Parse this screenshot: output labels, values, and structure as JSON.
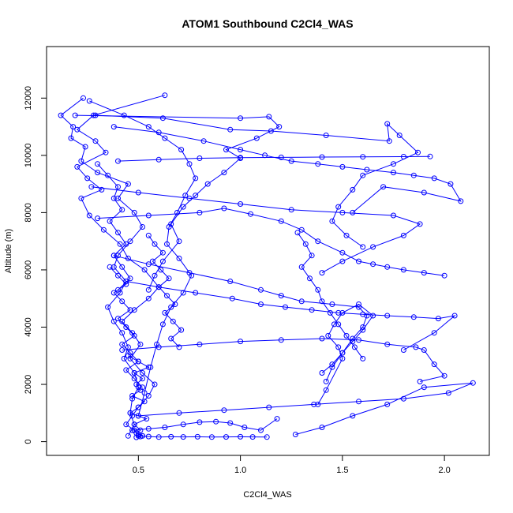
{
  "chart_data": {
    "type": "line",
    "title": "ATOM1 Southbound C2Cl4_WAS",
    "xlabel": "C2Cl4_WAS",
    "ylabel": "Altitude (m)",
    "xlim": [
      0.05,
      2.22
    ],
    "ylim": [
      -480,
      13800
    ],
    "x_ticks": [
      0.5,
      1.0,
      1.5,
      2.0
    ],
    "x_tick_labels": [
      "0.5",
      "1.0",
      "1.5",
      "2.0"
    ],
    "y_ticks": [
      0,
      2000,
      4000,
      6000,
      8000,
      10000,
      12000
    ],
    "y_tick_labels": [
      "0",
      "2000",
      "4000",
      "6000",
      "8000",
      "10000",
      "12000"
    ],
    "grid": false,
    "legend": "none",
    "marker": "open-circle",
    "series_color": "#0000ff",
    "series": [
      {
        "x": [
          0.63,
          0.28,
          0.2,
          0.29,
          0.34,
          0.2,
          0.25,
          0.32,
          0.22,
          0.26,
          0.33,
          0.41,
          0.45,
          0.53,
          0.6,
          0.55,
          0.48,
          0.42,
          0.47,
          0.51,
          0.46,
          0.52,
          0.58,
          0.55,
          0.5,
          0.47,
          0.44,
          0.48,
          0.5,
          0.52,
          0.49,
          0.51
        ],
        "y": [
          12100,
          11400,
          10900,
          10500,
          10100,
          9600,
          9200,
          8800,
          8500,
          7900,
          7400,
          6900,
          6400,
          6000,
          5400,
          5000,
          4600,
          4200,
          3800,
          3400,
          2900,
          2400,
          2000,
          1600,
          1200,
          900,
          600,
          400,
          250,
          200,
          150,
          180
        ]
      },
      {
        "x": [
          0.23,
          0.12,
          0.18,
          0.17,
          0.24,
          0.22,
          0.3,
          0.45,
          0.4,
          0.48,
          0.52,
          0.46,
          0.4,
          0.38,
          0.44,
          0.41,
          0.35,
          0.38,
          0.42,
          0.45,
          0.43,
          0.48,
          0.5,
          0.47,
          0.46,
          0.48,
          0.45
        ],
        "y": [
          12000,
          11400,
          11000,
          10600,
          10300,
          9800,
          9400,
          9000,
          8500,
          8000,
          7500,
          7000,
          6500,
          6100,
          5600,
          5200,
          4700,
          4200,
          3800,
          3300,
          2900,
          2400,
          1900,
          1500,
          1000,
          600,
          200
        ]
      },
      {
        "x": [
          0.26,
          0.43,
          0.55,
          0.63,
          0.71,
          0.75,
          0.78,
          0.73,
          0.69,
          0.65,
          0.64,
          0.7,
          0.76,
          0.72,
          0.66,
          0.62,
          0.59,
          0.56,
          0.53,
          0.5
        ],
        "y": [
          11900,
          11400,
          11000,
          10600,
          10200,
          9700,
          9200,
          8600,
          8000,
          7500,
          6900,
          6400,
          5800,
          5200,
          4700,
          4100,
          3400,
          2600,
          1700,
          900
        ]
      },
      {
        "x": [
          0.19,
          1.0,
          1.14,
          1.19,
          1.08,
          0.93,
          1.0,
          0.92,
          0.84,
          0.78,
          0.72,
          0.66,
          0.7,
          0.62,
          0.58,
          0.55
        ],
        "y": [
          11400,
          11300,
          11350,
          11000,
          10600,
          10200,
          9900,
          9400,
          9000,
          8600,
          8200,
          7600,
          7000,
          6300,
          5800,
          5300
        ]
      },
      {
        "x": [
          0.29,
          0.62,
          0.95,
          1.15,
          1.42,
          1.73,
          1.72,
          1.78,
          1.87,
          1.75,
          1.6,
          1.55,
          1.48,
          1.45,
          1.52,
          1.6
        ],
        "y": [
          11400,
          11300,
          10900,
          10850,
          10700,
          10500,
          11100,
          10700,
          10100,
          9700,
          9300,
          8800,
          8200,
          7700,
          7200,
          6800
        ]
      },
      {
        "x": [
          0.38,
          0.6,
          0.82,
          1.0,
          1.12,
          1.25,
          1.38,
          1.5,
          1.62,
          1.75,
          1.85,
          1.95,
          2.03,
          2.08,
          1.9,
          1.7,
          1.55
        ],
        "y": [
          11000,
          10800,
          10500,
          10200,
          10000,
          9800,
          9700,
          9600,
          9500,
          9400,
          9300,
          9200,
          9000,
          8400,
          8700,
          8900,
          8000
        ]
      },
      {
        "x": [
          0.4,
          0.6,
          0.8,
          1.0,
          1.2,
          1.4,
          1.6,
          1.8,
          1.93
        ],
        "y": [
          9800,
          9850,
          9900,
          9920,
          9930,
          9940,
          9950,
          9955,
          9960
        ]
      },
      {
        "x": [
          0.27,
          0.5,
          0.75,
          1.0,
          1.25,
          1.5,
          1.75,
          1.88,
          1.8,
          1.65,
          1.5,
          1.4
        ],
        "y": [
          8900,
          8700,
          8500,
          8300,
          8100,
          8000,
          7900,
          7600,
          7200,
          6800,
          6300,
          5900
        ]
      },
      {
        "x": [
          0.3,
          0.55,
          0.8,
          0.92,
          1.05,
          1.2,
          1.3,
          1.38,
          1.5,
          1.58,
          1.65,
          1.72,
          1.8,
          1.9,
          2.0
        ],
        "y": [
          7800,
          7900,
          8000,
          8150,
          7950,
          7700,
          7400,
          7000,
          6600,
          6300,
          6200,
          6100,
          6000,
          5900,
          5800
        ]
      },
      {
        "x": [
          0.38,
          0.55,
          0.75,
          0.95,
          1.1,
          1.2,
          1.3,
          1.45,
          1.58,
          1.62,
          1.6,
          1.55,
          1.5,
          1.45,
          1.42
        ],
        "y": [
          6500,
          6200,
          5900,
          5600,
          5300,
          5100,
          4900,
          4800,
          4700,
          4400,
          4000,
          3600,
          3100,
          2600,
          2100
        ]
      },
      {
        "x": [
          0.44,
          0.6,
          0.78,
          0.96,
          1.1,
          1.22,
          1.35,
          1.48,
          1.6,
          1.72,
          1.85,
          1.97,
          2.05,
          1.95,
          1.8
        ],
        "y": [
          5600,
          5400,
          5200,
          5000,
          4800,
          4700,
          4600,
          4500,
          4450,
          4400,
          4350,
          4300,
          4400,
          3800,
          3200
        ]
      },
      {
        "x": [
          0.42,
          0.6,
          0.8,
          1.0,
          1.2,
          1.4,
          1.58,
          1.72,
          1.86,
          1.9,
          1.95,
          2.0,
          1.88
        ],
        "y": [
          3200,
          3300,
          3400,
          3500,
          3550,
          3600,
          3550,
          3400,
          3300,
          3200,
          2700,
          2300,
          2100
        ]
      },
      {
        "x": [
          0.5,
          0.7,
          0.92,
          1.14,
          1.36,
          1.58,
          1.8,
          2.02,
          2.14,
          1.9,
          1.72,
          1.55,
          1.4,
          1.27
        ],
        "y": [
          900,
          1000,
          1100,
          1200,
          1300,
          1400,
          1500,
          1700,
          2050,
          1900,
          1300,
          900,
          500,
          250
        ]
      },
      {
        "x": [
          0.47,
          0.55,
          0.63,
          0.72,
          0.8,
          0.88,
          0.95,
          1.02,
          1.1,
          1.18
        ],
        "y": [
          400,
          450,
          500,
          600,
          680,
          700,
          650,
          500,
          400,
          800
        ]
      },
      {
        "x": [
          0.5,
          0.55,
          0.6,
          0.66,
          0.72,
          0.79,
          0.86,
          0.93,
          1.0,
          1.06,
          1.13
        ],
        "y": [
          200,
          180,
          160,
          170,
          165,
          170,
          160,
          165,
          170,
          165,
          160
        ]
      },
      {
        "x": [
          1.4,
          1.45,
          1.5,
          1.55,
          1.6,
          1.65,
          1.58,
          1.5,
          1.46,
          1.43,
          1.48,
          1.5,
          1.42,
          1.38
        ],
        "y": [
          2400,
          2700,
          3100,
          3500,
          3900,
          4400,
          4800,
          4500,
          4100,
          3700,
          3300,
          2900,
          1800,
          1300
        ]
      },
      {
        "x": [
          0.45,
          0.5,
          0.55,
          0.48,
          0.52,
          0.49,
          0.51,
          0.47,
          0.53,
          0.5,
          0.46,
          0.54,
          0.48,
          0.51,
          0.49,
          0.52
        ],
        "y": [
          3000,
          2800,
          2600,
          2400,
          2200,
          2000,
          1800,
          1600,
          1400,
          1200,
          1000,
          800,
          600,
          400,
          300,
          200
        ]
      },
      {
        "x": [
          0.36,
          0.4,
          0.44,
          0.38,
          0.42,
          0.46,
          0.4,
          0.44,
          0.48,
          0.42,
          0.46,
          0.5,
          0.44,
          0.48,
          0.52
        ],
        "y": [
          6100,
          5800,
          5500,
          5200,
          4900,
          4600,
          4300,
          4000,
          3700,
          3400,
          3100,
          2800,
          2500,
          2200,
          1900
        ]
      },
      {
        "x": [
          0.55,
          0.58,
          0.62,
          0.57,
          0.61,
          0.65,
          0.6,
          0.64,
          0.68,
          0.63,
          0.67,
          0.71,
          0.66,
          0.7
        ],
        "y": [
          7200,
          6900,
          6600,
          6300,
          6000,
          5700,
          5400,
          5100,
          4800,
          4500,
          4200,
          3900,
          3600,
          3300
        ]
      },
      {
        "x": [
          0.3,
          0.35,
          0.4,
          0.38,
          0.42,
          0.36,
          0.4,
          0.44,
          0.38,
          0.42,
          0.46,
          0.4
        ],
        "y": [
          9700,
          9300,
          8900,
          8500,
          8100,
          7700,
          7300,
          6900,
          6500,
          6100,
          5700,
          5300
        ]
      },
      {
        "x": [
          1.28,
          1.32,
          1.35,
          1.3,
          1.34,
          1.38,
          1.4,
          1.44,
          1.48,
          1.52,
          1.56,
          1.6
        ],
        "y": [
          7300,
          6900,
          6500,
          6100,
          5700,
          5300,
          4900,
          4500,
          4100,
          3700,
          3300,
          2900
        ]
      }
    ]
  }
}
